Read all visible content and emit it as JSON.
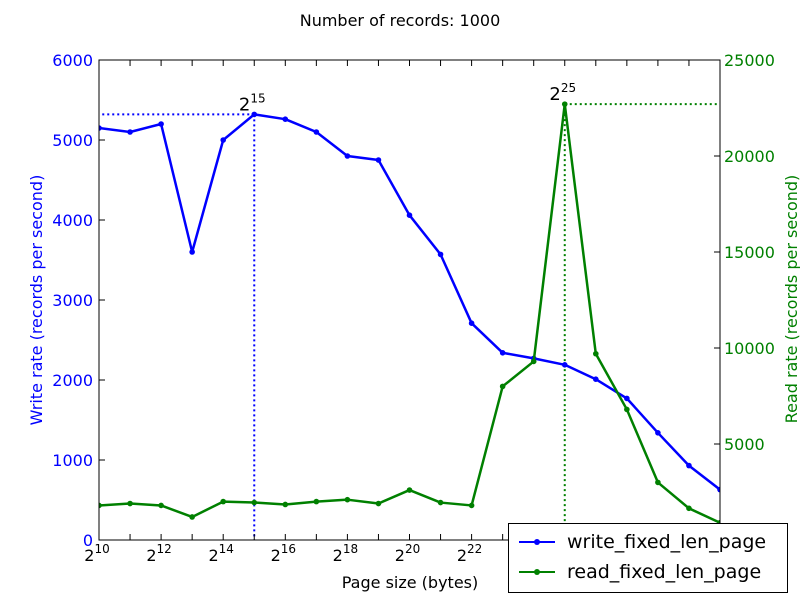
{
  "chart_data": {
    "type": "line",
    "title": "Number of records: 1000",
    "xlabel": "Page size (bytes)",
    "ylabel_left": "Write rate (records per second)",
    "ylabel_right": "Read rate (records per second)",
    "x_scale": "log2",
    "x_base": "2",
    "x_tick_exponents": [
      "10",
      "12",
      "14",
      "16",
      "18",
      "20",
      "22"
    ],
    "x_exponents": [
      10,
      11,
      12,
      13,
      14,
      15,
      16,
      17,
      18,
      19,
      20,
      21,
      22,
      23,
      24,
      25,
      26,
      27,
      28,
      29,
      30
    ],
    "ylim_left": [
      0,
      6000
    ],
    "ylim_right": [
      0,
      25000
    ],
    "yticks_left": [
      "0",
      "1000",
      "2000",
      "3000",
      "4000",
      "5000",
      "6000"
    ],
    "yticks_right": [
      "5000",
      "10000",
      "15000",
      "20000",
      "25000"
    ],
    "colors": {
      "write": "#0000ff",
      "read": "#008000"
    },
    "series": [
      {
        "name": "write_fixed_len_page",
        "axis": "left",
        "values": [
          5150,
          5100,
          5200,
          3600,
          5000,
          5320,
          5260,
          5100,
          4800,
          4750,
          4060,
          3570,
          2710,
          2340,
          2270,
          2190,
          2010,
          1770,
          1340,
          930,
          630
        ]
      },
      {
        "name": "read_fixed_len_page",
        "axis": "right",
        "values": [
          1800,
          1900,
          1800,
          1200,
          2000,
          1950,
          1850,
          2000,
          2100,
          1900,
          2600,
          1950,
          1800,
          8000,
          9300,
          22700,
          9700,
          6800,
          3000,
          1650,
          900
        ]
      }
    ],
    "annotations": [
      {
        "label_base": "2",
        "label_exp": "15",
        "x_exp": 15,
        "axis": "left",
        "y": 5320,
        "color": "#0000ff",
        "direction": "left"
      },
      {
        "label_base": "2",
        "label_exp": "25",
        "x_exp": 25,
        "axis": "right",
        "y": 22700,
        "color": "#008000",
        "direction": "right"
      }
    ],
    "legend_position": "lower right"
  }
}
